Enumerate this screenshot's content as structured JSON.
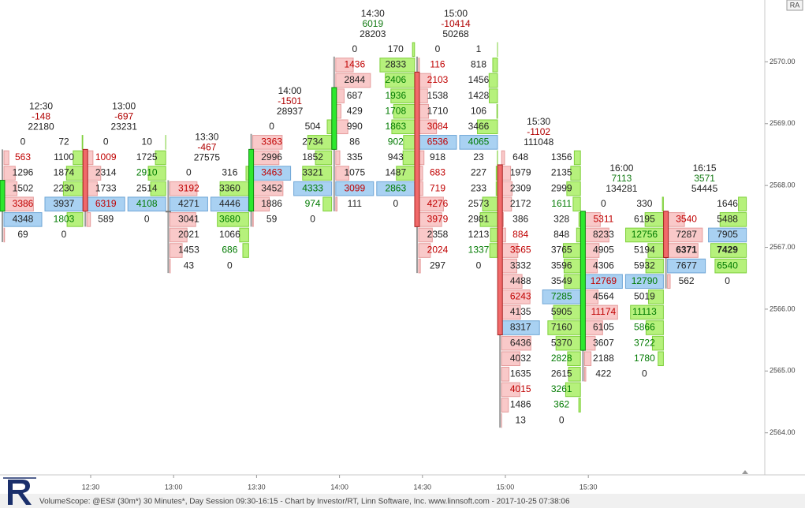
{
  "toolbar": {
    "badge": "RA"
  },
  "footer": {
    "text": "VolumeScope: @ES# (30m*) 30 Minutes*, Day Session 09:30-16:15 - Chart by Investor/RT, Linn Software, Inc. www.linnsoft.com - 2017-10-25 07:38:06"
  },
  "chart_data": {
    "type": "footprint",
    "ylim": [
      2563.32,
      2571.0
    ],
    "yticks": [
      {
        "value": 2564,
        "label": "2564.00"
      },
      {
        "value": 2565,
        "label": "2565.00"
      },
      {
        "value": 2566,
        "label": "2566.00"
      },
      {
        "value": 2567,
        "label": "2567.00"
      },
      {
        "value": 2568,
        "label": "2568.00"
      },
      {
        "value": 2569,
        "label": "2569.00"
      },
      {
        "value": 2570,
        "label": "2570.00"
      }
    ],
    "x_labels": [
      "12:30",
      "13:00",
      "13:30",
      "14:00",
      "14:30",
      "15:00",
      "15:30"
    ],
    "bars": [
      {
        "time": "12:30",
        "delta": -148,
        "volume": 22180,
        "open": 2567.75,
        "close": 2568.25,
        "high": 2568.75,
        "low": 2567.25,
        "rows": [
          [
            0,
            72
          ],
          [
            563,
            1100
          ],
          [
            1296,
            1874
          ],
          [
            1502,
            2230
          ],
          [
            3386,
            3937
          ],
          [
            4348,
            1803
          ],
          [
            69,
            0
          ]
        ]
      },
      {
        "time": "13:00",
        "delta": -697,
        "volume": 23231,
        "open": 2568.75,
        "close": 2567.75,
        "high": 2568.75,
        "low": 2567.5,
        "rows": [
          [
            0,
            10
          ],
          [
            1009,
            1725
          ],
          [
            2314,
            2910
          ],
          [
            1733,
            2514
          ],
          [
            6319,
            4108
          ],
          [
            589,
            0
          ]
        ]
      },
      {
        "time": "13:30",
        "delta": -467,
        "volume": 27575,
        "open": 2567.75,
        "close": 2567.75,
        "high": 2568.25,
        "low": 2566.75,
        "rows": [
          [
            0,
            316
          ],
          [
            3192,
            3360
          ],
          [
            4271,
            4446
          ],
          [
            3041,
            3680
          ],
          [
            2021,
            1066
          ],
          [
            1453,
            686
          ],
          [
            43,
            0
          ]
        ]
      },
      {
        "time": "14:00",
        "delta": -1501,
        "volume": 28937,
        "open": 2567.75,
        "close": 2568.75,
        "high": 2569.0,
        "low": 2567.5,
        "rows": [
          [
            0,
            504
          ],
          [
            3363,
            2734
          ],
          [
            2996,
            1852
          ],
          [
            3463,
            3321
          ],
          [
            3452,
            4333
          ],
          [
            1886,
            974
          ],
          [
            59,
            0
          ]
        ]
      },
      {
        "time": "14:30",
        "delta": 6019,
        "volume": 28203,
        "open": 2568.75,
        "close": 2569.75,
        "high": 2570.25,
        "low": 2567.75,
        "rows": [
          [
            0,
            170
          ],
          [
            1436,
            2833
          ],
          [
            2844,
            2406
          ],
          [
            687,
            1936
          ],
          [
            429,
            1708
          ],
          [
            990,
            1863
          ],
          [
            86,
            902
          ],
          [
            335,
            943
          ],
          [
            1075,
            1487
          ],
          [
            3099,
            2863
          ],
          [
            111,
            0
          ]
        ]
      },
      {
        "time": "15:00",
        "delta": -10414,
        "volume": 50268,
        "open": 2570.0,
        "close": 2567.5,
        "high": 2570.25,
        "low": 2566.75,
        "rows": [
          [
            0,
            1
          ],
          [
            116,
            818
          ],
          [
            2103,
            1456
          ],
          [
            1538,
            1428
          ],
          [
            1710,
            106
          ],
          [
            3084,
            3466
          ],
          [
            6536,
            4065
          ],
          [
            918,
            23
          ],
          [
            683,
            227
          ],
          [
            719,
            233
          ],
          [
            4276,
            2573
          ],
          [
            3979,
            2981
          ],
          [
            2358,
            1213
          ],
          [
            2024,
            1337
          ],
          [
            297,
            0
          ]
        ]
      },
      {
        "time": "15:30",
        "delta": -1102,
        "volume": 111048,
        "open": 2568.5,
        "close": 2565.75,
        "high": 2568.5,
        "low": 2564.25,
        "rows": [
          [
            648,
            1356
          ],
          [
            1979,
            2135
          ],
          [
            2309,
            2999
          ],
          [
            2172,
            1611
          ],
          [
            386,
            328
          ],
          [
            884,
            848
          ],
          [
            3565,
            3765
          ],
          [
            3332,
            3596
          ],
          [
            4488,
            3549
          ],
          [
            6243,
            7285
          ],
          [
            4135,
            5905
          ],
          [
            8317,
            7160
          ],
          [
            6436,
            5370
          ],
          [
            4032,
            2828
          ],
          [
            1635,
            2615
          ],
          [
            4015,
            3261
          ],
          [
            1486,
            362
          ],
          [
            13,
            0
          ]
        ]
      },
      {
        "time": "16:00",
        "delta": 7113,
        "volume": 134281,
        "open": 2565.5,
        "close": 2567.75,
        "high": 2567.75,
        "low": 2565.0,
        "rows": [
          [
            0,
            330
          ],
          [
            5311,
            6195
          ],
          [
            8233,
            12756
          ],
          [
            4905,
            5194
          ],
          [
            4306,
            5932
          ],
          [
            12769,
            12790
          ],
          [
            4564,
            5019
          ],
          [
            11174,
            11113
          ],
          [
            6105,
            5866
          ],
          [
            3607,
            3722
          ],
          [
            2188,
            1780
          ],
          [
            422,
            0
          ]
        ]
      },
      {
        "time": "16:15",
        "delta": 3571,
        "volume": 54445,
        "open": 2567.75,
        "close": 2567.0,
        "high": 2567.75,
        "low": 2566.5,
        "rows": [
          [
            null,
            1646
          ],
          [
            3540,
            5488
          ],
          [
            7287,
            7905
          ],
          [
            6371,
            7429
          ],
          [
            7677,
            6540
          ],
          [
            562,
            0
          ]
        ]
      }
    ]
  }
}
